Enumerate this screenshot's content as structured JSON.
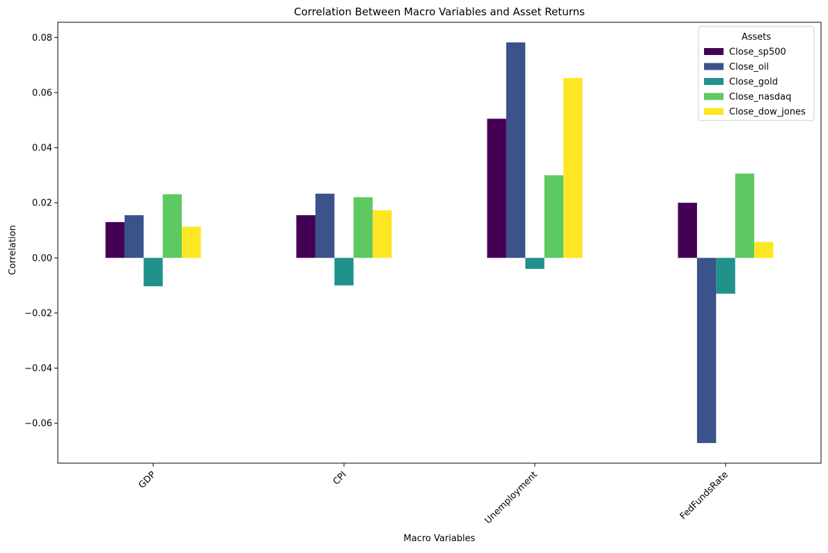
{
  "chart_data": {
    "type": "bar",
    "title": "Correlation Between Macro Variables and Asset Returns",
    "xlabel": "Macro Variables",
    "ylabel": "Correlation",
    "categories": [
      "GDP",
      "CPI",
      "Unemployment",
      "FedFundsRate"
    ],
    "ylim": [
      -0.0745,
      0.0855
    ],
    "yticks": [
      -0.06,
      -0.04,
      -0.02,
      0.0,
      0.02,
      0.04,
      0.06,
      0.08
    ],
    "ytick_labels": [
      "−0.06",
      "−0.04",
      "−0.02",
      "0.00",
      "0.02",
      "0.04",
      "0.06",
      "0.08"
    ],
    "grid": false,
    "legend": {
      "title": "Assets",
      "placement": "top-right"
    },
    "series": [
      {
        "name": "Close_sp500",
        "color": "#440154",
        "values": [
          0.013,
          0.0155,
          0.0505,
          0.02
        ]
      },
      {
        "name": "Close_oil",
        "color": "#3b528b",
        "values": [
          0.0155,
          0.0233,
          0.0782,
          -0.0672
        ]
      },
      {
        "name": "Close_gold",
        "color": "#21918c",
        "values": [
          -0.0103,
          -0.01,
          -0.004,
          -0.013
        ]
      },
      {
        "name": "Close_nasdaq",
        "color": "#5ec962",
        "values": [
          0.0231,
          0.022,
          0.03,
          0.0306
        ]
      },
      {
        "name": "Close_dow_jones",
        "color": "#fde725",
        "values": [
          0.0113,
          0.0173,
          0.0653,
          0.0058
        ]
      }
    ]
  }
}
